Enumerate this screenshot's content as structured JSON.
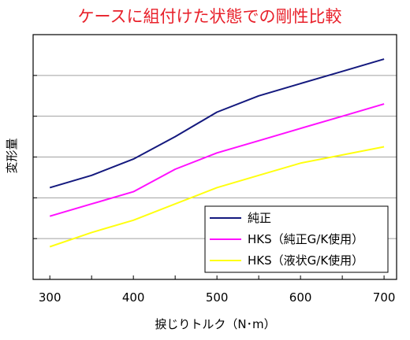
{
  "chart_data": {
    "type": "line",
    "title": "ケースに組付けた状態での剛性比較",
    "xlabel": "捩じりトルク（N･m）",
    "ylabel": "変形量",
    "x": [
      300,
      350,
      400,
      450,
      500,
      550,
      600,
      650,
      700
    ],
    "xticks": [
      "300",
      "400",
      "500",
      "600",
      "700"
    ],
    "xlim": [
      280,
      715
    ],
    "ylim": [
      0,
      6
    ],
    "y_tick_labels_shown": false,
    "grid": "horizontal",
    "legend_position": "bottom-right",
    "series": [
      {
        "name": "純正",
        "color": "#14197e",
        "values": [
          2.25,
          2.55,
          2.95,
          3.5,
          4.1,
          4.5,
          4.8,
          5.1,
          5.4
        ]
      },
      {
        "name": "HKS（純正G/K使用）",
        "color": "#ff10ff",
        "values": [
          1.55,
          1.85,
          2.15,
          2.7,
          3.1,
          3.4,
          3.7,
          4.0,
          4.3
        ]
      },
      {
        "name": "HKS（液状G/K使用）",
        "color": "#ffff10",
        "values": [
          0.8,
          1.15,
          1.45,
          1.85,
          2.25,
          2.55,
          2.85,
          3.05,
          3.25
        ]
      }
    ]
  }
}
